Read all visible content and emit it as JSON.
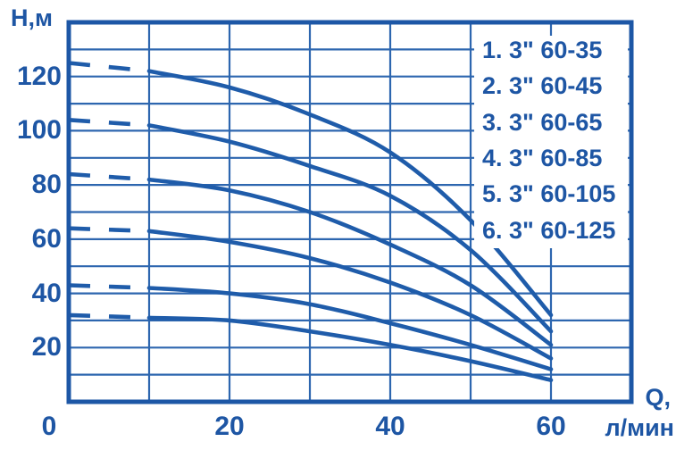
{
  "axes": {
    "y_title": "Н,м",
    "x_title_quantity": "Q,",
    "x_title_unit": "л/мин"
  },
  "colors": {
    "text": "#1e56a4",
    "curve": "#1f5caa",
    "grid": "#2d66af",
    "border": "#1d57a6",
    "background": "#ffffff"
  },
  "chart_data": {
    "type": "line",
    "title": "",
    "xlabel": "Q, л/мин",
    "ylabel": "Н, м",
    "xlim": [
      0,
      70
    ],
    "ylim": [
      0,
      140
    ],
    "grid": true,
    "x_gridline_step": 10,
    "y_gridline_step": 10,
    "x_tick_labels": [
      0,
      20,
      40,
      60
    ],
    "y_tick_labels": [
      20,
      40,
      60,
      80,
      100,
      120
    ],
    "legend_position": "top-right",
    "x": [
      0,
      10,
      20,
      30,
      40,
      50,
      60
    ],
    "dashed_segment": {
      "from_x": 0,
      "to_x": 10
    },
    "series": [
      {
        "name": "1. 3\" 60-35",
        "values": [
          32,
          31,
          30,
          26,
          21,
          15,
          8
        ]
      },
      {
        "name": "2. 3\" 60-45",
        "values": [
          43,
          42,
          40,
          36,
          29,
          21,
          12
        ]
      },
      {
        "name": "3. 3\" 60-65",
        "values": [
          64,
          63,
          59,
          53,
          44,
          32,
          16
        ]
      },
      {
        "name": "4. 3\" 60-85",
        "values": [
          84,
          82,
          78,
          70,
          58,
          43,
          21
        ]
      },
      {
        "name": "5. 3\" 60-105",
        "values": [
          104,
          102,
          96,
          87,
          76,
          56,
          26
        ]
      },
      {
        "name": "6. 3\" 60-125",
        "values": [
          125,
          122,
          116,
          106,
          92,
          67,
          32
        ]
      }
    ]
  }
}
